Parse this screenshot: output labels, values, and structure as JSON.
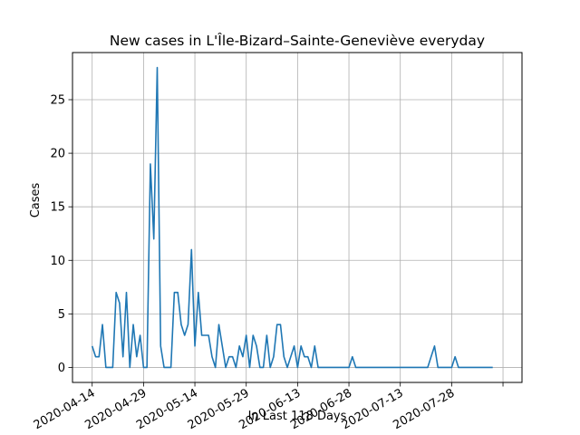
{
  "chart_data": {
    "type": "line",
    "title": "New cases in L'Île-Bizard–Sainte-Geneviève everyday",
    "xlabel": "In Last 118 Days",
    "ylabel": "Cases",
    "x_ticks": [
      "2020-04-14",
      "2020-04-29",
      "2020-05-14",
      "2020-05-29",
      "2020-06-13",
      "2020-06-28",
      "2020-07-13",
      "2020-07-28",
      ""
    ],
    "x_range": [
      "2020-04-14",
      "2020-08-12"
    ],
    "y_ticks": [
      0,
      5,
      10,
      15,
      20,
      25
    ],
    "ylim": [
      -1.4,
      29.4
    ],
    "grid": true,
    "line_color": "#1f77b4",
    "x": [
      "2020-04-14",
      "2020-04-15",
      "2020-04-16",
      "2020-04-17",
      "2020-04-18",
      "2020-04-19",
      "2020-04-20",
      "2020-04-21",
      "2020-04-22",
      "2020-04-23",
      "2020-04-24",
      "2020-04-25",
      "2020-04-26",
      "2020-04-27",
      "2020-04-28",
      "2020-04-29",
      "2020-04-30",
      "2020-05-01",
      "2020-05-02",
      "2020-05-03",
      "2020-05-04",
      "2020-05-05",
      "2020-05-06",
      "2020-05-07",
      "2020-05-08",
      "2020-05-09",
      "2020-05-10",
      "2020-05-11",
      "2020-05-12",
      "2020-05-13",
      "2020-05-14",
      "2020-05-15",
      "2020-05-16",
      "2020-05-17",
      "2020-05-18",
      "2020-05-19",
      "2020-05-20",
      "2020-05-21",
      "2020-05-22",
      "2020-05-23",
      "2020-05-24",
      "2020-05-25",
      "2020-05-26",
      "2020-05-27",
      "2020-05-28",
      "2020-05-29",
      "2020-05-30",
      "2020-05-31",
      "2020-06-01",
      "2020-06-02",
      "2020-06-03",
      "2020-06-04",
      "2020-06-05",
      "2020-06-06",
      "2020-06-07",
      "2020-06-08",
      "2020-06-09",
      "2020-06-10",
      "2020-06-11",
      "2020-06-12",
      "2020-06-13",
      "2020-06-14",
      "2020-06-15",
      "2020-06-16",
      "2020-06-17",
      "2020-06-18",
      "2020-06-19",
      "2020-06-20",
      "2020-06-21",
      "2020-06-22",
      "2020-06-23",
      "2020-06-24",
      "2020-06-25",
      "2020-06-26",
      "2020-06-27",
      "2020-06-28",
      "2020-06-29",
      "2020-06-30",
      "2020-07-01",
      "2020-07-02",
      "2020-07-03",
      "2020-07-04",
      "2020-07-05",
      "2020-07-06",
      "2020-07-07",
      "2020-07-08",
      "2020-07-09",
      "2020-07-10",
      "2020-07-11",
      "2020-07-12",
      "2020-07-13",
      "2020-07-14",
      "2020-07-15",
      "2020-07-16",
      "2020-07-17",
      "2020-07-18",
      "2020-07-19",
      "2020-07-20",
      "2020-07-21",
      "2020-07-22",
      "2020-07-23",
      "2020-07-24",
      "2020-07-25",
      "2020-07-26",
      "2020-07-27",
      "2020-07-28",
      "2020-07-29",
      "2020-07-30",
      "2020-07-31",
      "2020-08-01",
      "2020-08-02",
      "2020-08-03",
      "2020-08-04",
      "2020-08-05",
      "2020-08-06",
      "2020-08-07",
      "2020-08-08",
      "2020-08-09"
    ],
    "values": [
      2,
      1,
      1,
      4,
      0,
      0,
      0,
      7,
      6,
      1,
      7,
      0,
      4,
      1,
      3,
      0,
      0,
      19,
      12,
      28,
      2,
      0,
      0,
      0,
      7,
      7,
      4,
      3,
      4,
      11,
      2,
      7,
      3,
      3,
      3,
      1,
      0,
      4,
      2,
      0,
      1,
      1,
      0,
      2,
      1,
      3,
      0,
      3,
      2,
      0,
      0,
      3,
      0,
      1,
      4,
      4,
      1,
      0,
      1,
      2,
      0,
      2,
      1,
      1,
      0,
      2,
      0,
      0,
      0,
      0,
      0,
      0,
      0,
      0,
      0,
      0,
      1,
      0,
      0,
      0,
      0,
      0,
      0,
      0,
      0,
      0,
      0,
      0,
      0,
      0,
      0,
      0,
      0,
      0,
      0,
      0,
      0,
      0,
      0,
      1,
      2,
      0,
      0,
      0,
      0,
      0,
      1,
      0,
      0,
      0,
      0,
      0,
      0,
      0,
      0,
      0,
      0,
      0
    ]
  }
}
